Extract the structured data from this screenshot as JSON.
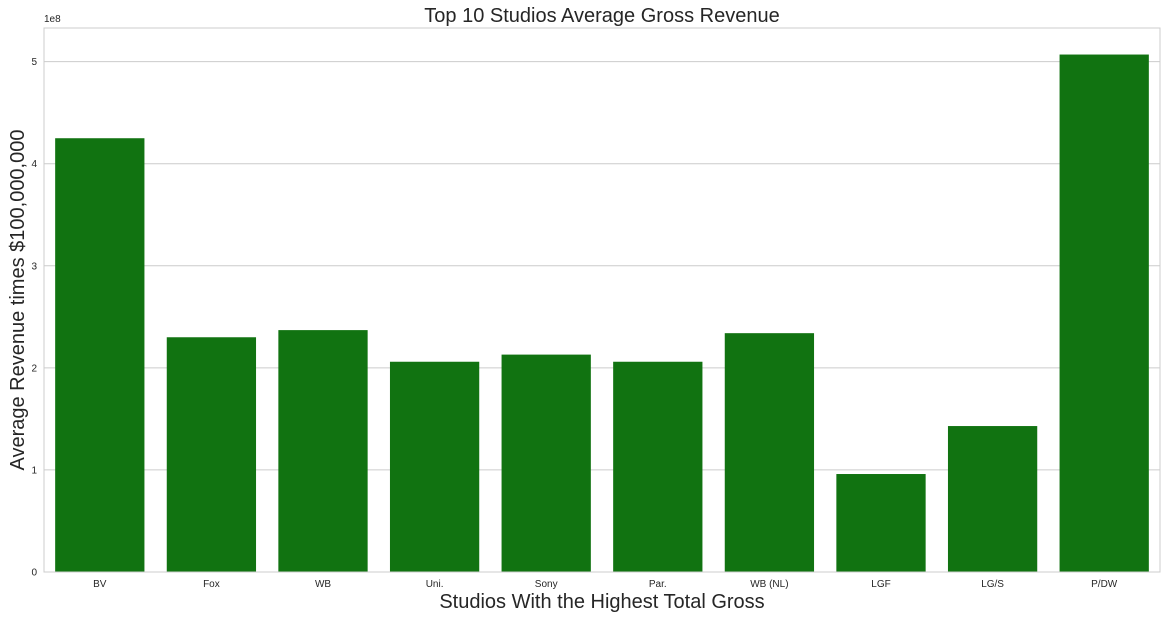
{
  "chart_data": {
    "type": "bar",
    "title": "Top 10 Studios Average Gross Revenue",
    "xlabel": "Studios With the Highest Total Gross",
    "ylabel": "Average Revenue times $100,000,000",
    "offset_label": "1e8",
    "categories": [
      "BV",
      "Fox",
      "WB",
      "Uni.",
      "Sony",
      "Par.",
      "WB (NL)",
      "LGF",
      "LG/S",
      "P/DW"
    ],
    "values": [
      425000000,
      230000000,
      237000000,
      206000000,
      213000000,
      206000000,
      234000000,
      96000000,
      143000000,
      507000000
    ],
    "ylim": [
      0,
      533000000
    ],
    "yticks": [
      0,
      100000000,
      200000000,
      300000000,
      400000000,
      500000000
    ],
    "ytick_labels": [
      "0",
      "1",
      "2",
      "3",
      "4",
      "5"
    ],
    "grid": true,
    "bar_color": "#117311",
    "grid_color": "#cccccc",
    "spine_color": "#cccccc",
    "text_color": "#262626"
  }
}
